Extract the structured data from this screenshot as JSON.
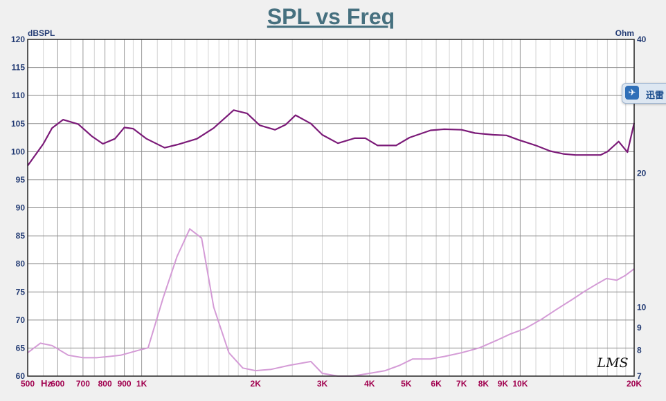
{
  "chart_data": {
    "type": "line",
    "title": "SPL vs Freq",
    "ylabel": "dBSPL",
    "y2label": "Ohm",
    "xunit": "Hz",
    "xscale": "log",
    "xlim": [
      500,
      20000
    ],
    "ylim": [
      60,
      120
    ],
    "y2lim": [
      7,
      40
    ],
    "y2scale": "log",
    "grid": true,
    "watermark": "LMS",
    "x_ticks": [
      {
        "v": 500,
        "label": "500"
      },
      {
        "v": 600,
        "label": "600"
      },
      {
        "v": 700,
        "label": "700"
      },
      {
        "v": 800,
        "label": "800"
      },
      {
        "v": 900,
        "label": "900"
      },
      {
        "v": 1000,
        "label": "1K"
      },
      {
        "v": 2000,
        "label": "2K"
      },
      {
        "v": 3000,
        "label": "3K"
      },
      {
        "v": 4000,
        "label": "4K"
      },
      {
        "v": 5000,
        "label": "5K"
      },
      {
        "v": 6000,
        "label": "6K"
      },
      {
        "v": 7000,
        "label": "7K"
      },
      {
        "v": 8000,
        "label": "8K"
      },
      {
        "v": 9000,
        "label": "9K"
      },
      {
        "v": 10000,
        "label": "10K"
      },
      {
        "v": 20000,
        "label": "20K"
      }
    ],
    "y_ticks": [
      60,
      65,
      70,
      75,
      80,
      85,
      90,
      95,
      100,
      105,
      110,
      115,
      120
    ],
    "y2_ticks": [
      7,
      8,
      9,
      10,
      20,
      40
    ],
    "series": [
      {
        "axis": "left",
        "color": "#7b1a78",
        "x": [
          500,
          550,
          580,
          620,
          680,
          740,
          790,
          850,
          900,
          950,
          1030,
          1150,
          1250,
          1400,
          1550,
          1750,
          1900,
          2050,
          2250,
          2400,
          2550,
          2800,
          3000,
          3300,
          3650,
          3900,
          4200,
          4700,
          5100,
          5800,
          6300,
          7000,
          7600,
          8500,
          9200,
          9900,
          11000,
          12000,
          13000,
          14000,
          15000,
          16300,
          17000,
          18200,
          19200,
          20000
        ],
        "values": [
          97.5,
          101.4,
          104.2,
          105.7,
          104.9,
          102.7,
          101.4,
          102.3,
          104.3,
          104.1,
          102.3,
          100.7,
          101.3,
          102.3,
          104.2,
          107.4,
          106.8,
          104.7,
          103.9,
          104.8,
          106.5,
          105.0,
          103.0,
          101.5,
          102.4,
          102.4,
          101.1,
          101.1,
          102.5,
          103.8,
          104.0,
          103.9,
          103.3,
          103.0,
          102.9,
          102.1,
          101.1,
          100.1,
          99.6,
          99.4,
          99.4,
          99.4,
          100.0,
          101.8,
          99.9,
          105.1
        ]
      },
      {
        "axis": "right",
        "color": "#d49bd6",
        "x": [
          500,
          540,
          580,
          640,
          700,
          760,
          820,
          880,
          930,
          980,
          1040,
          1140,
          1240,
          1340,
          1440,
          1550,
          1700,
          1850,
          2000,
          2200,
          2450,
          2800,
          3000,
          3300,
          3600,
          4000,
          4400,
          4800,
          5200,
          5800,
          6300,
          7000,
          7800,
          8600,
          9400,
          10300,
          11400,
          12500,
          13700,
          14900,
          16000,
          16900,
          18000,
          19000,
          20000
        ],
        "values": [
          7.9,
          8.3,
          8.2,
          7.8,
          7.7,
          7.7,
          7.75,
          7.8,
          7.9,
          8.0,
          8.1,
          10.5,
          13.0,
          15.0,
          14.3,
          10.0,
          7.9,
          7.3,
          7.2,
          7.25,
          7.4,
          7.55,
          7.1,
          7.0,
          7.0,
          7.1,
          7.2,
          7.4,
          7.65,
          7.65,
          7.75,
          7.9,
          8.1,
          8.4,
          8.7,
          8.95,
          9.4,
          9.9,
          10.4,
          10.9,
          11.3,
          11.6,
          11.5,
          11.8,
          12.2
        ]
      }
    ]
  },
  "overlay": {
    "label": "迅雷",
    "icon": "thunder-bird-icon"
  }
}
